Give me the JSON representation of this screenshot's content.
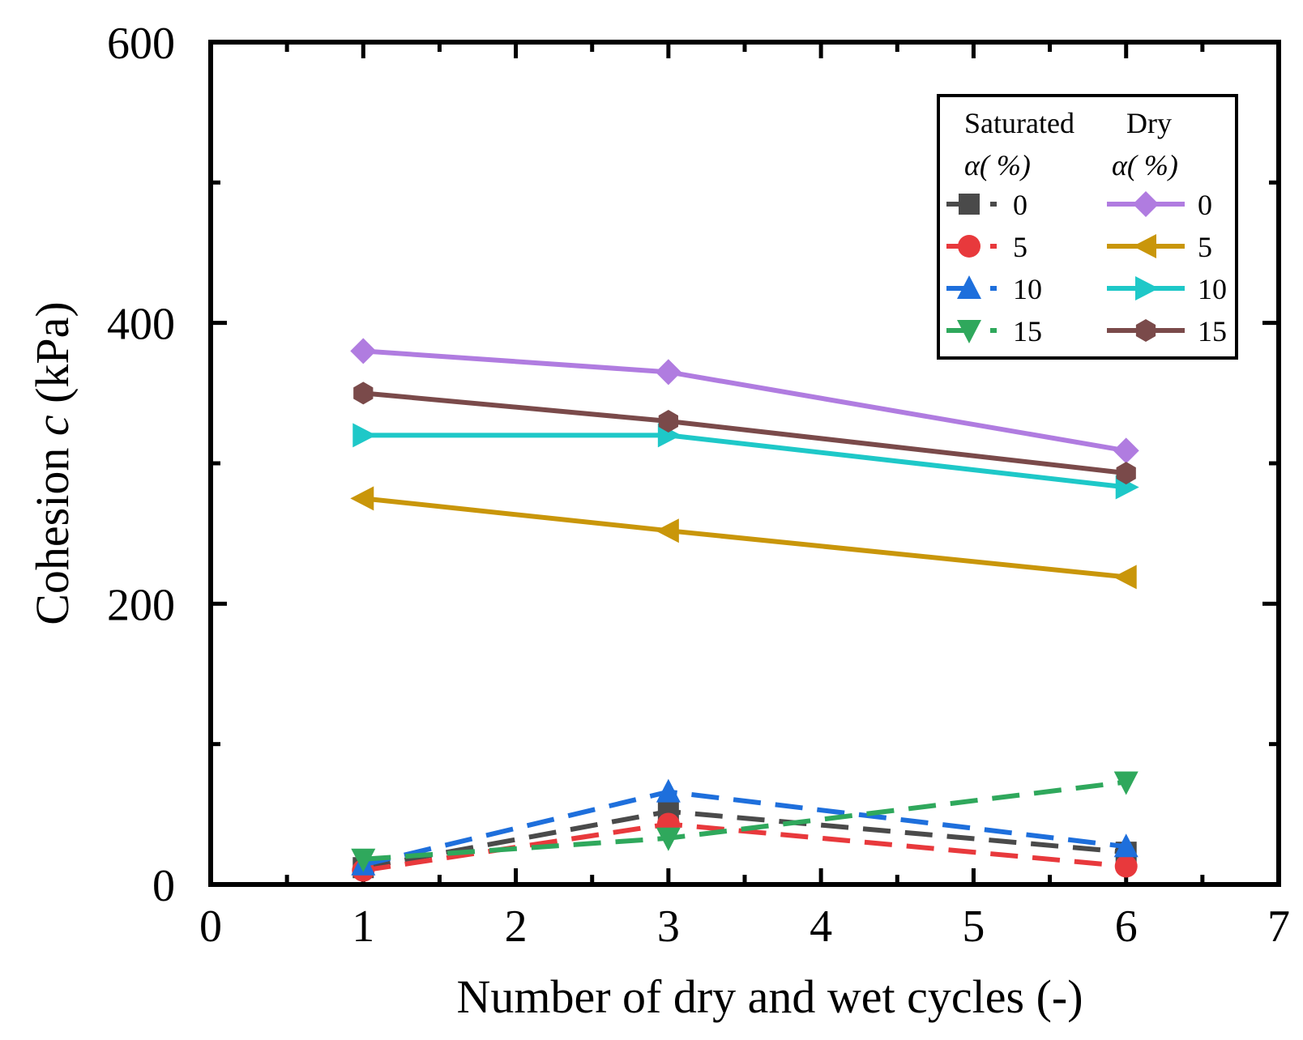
{
  "chart_data": {
    "type": "line",
    "title": "",
    "xlabel": "Number of dry and wet cycles (-)",
    "ylabel_prefix": "Cohesion ",
    "ylabel_symbol": "c",
    "ylabel_suffix": " (kPa)",
    "xlim": [
      0,
      7
    ],
    "ylim": [
      0,
      600
    ],
    "x_ticks": [
      0,
      1,
      2,
      3,
      4,
      5,
      6,
      7
    ],
    "y_ticks": [
      0,
      200,
      400,
      600
    ],
    "x": [
      1,
      3,
      6
    ],
    "legend": {
      "position": "top-right",
      "saturated_header": "Saturated",
      "dry_header": "Dry",
      "alpha_label": "α( %)"
    },
    "series": [
      {
        "group": "Saturated",
        "name": "0",
        "label": "0",
        "color": "#4a4a4a",
        "marker": "square",
        "dashed": true,
        "values": [
          12,
          52,
          23
        ]
      },
      {
        "group": "Saturated",
        "name": "5",
        "label": "5",
        "color": "#e8393c",
        "marker": "circle",
        "dashed": true,
        "values": [
          10,
          43,
          13
        ]
      },
      {
        "group": "Saturated",
        "name": "10",
        "label": "10",
        "color": "#1e6fdc",
        "marker": "triangle-up",
        "dashed": true,
        "values": [
          14,
          66,
          27
        ]
      },
      {
        "group": "Saturated",
        "name": "15",
        "label": "15",
        "color": "#2fa85c",
        "marker": "triangle-down",
        "dashed": true,
        "values": [
          18,
          33,
          73
        ]
      },
      {
        "group": "Dry",
        "name": "0",
        "label": "0",
        "color": "#b07ce0",
        "marker": "diamond",
        "dashed": false,
        "values": [
          380,
          365,
          309
        ]
      },
      {
        "group": "Dry",
        "name": "5",
        "label": "5",
        "color": "#c9960a",
        "marker": "triangle-left",
        "dashed": false,
        "values": [
          275,
          252,
          219
        ]
      },
      {
        "group": "Dry",
        "name": "10",
        "label": "10",
        "color": "#1ec8c8",
        "marker": "triangle-right",
        "dashed": false,
        "values": [
          320,
          320,
          283
        ]
      },
      {
        "group": "Dry",
        "name": "15",
        "label": "15",
        "color": "#7a4a4a",
        "marker": "hexagon",
        "dashed": false,
        "values": [
          350,
          330,
          293
        ]
      }
    ]
  }
}
